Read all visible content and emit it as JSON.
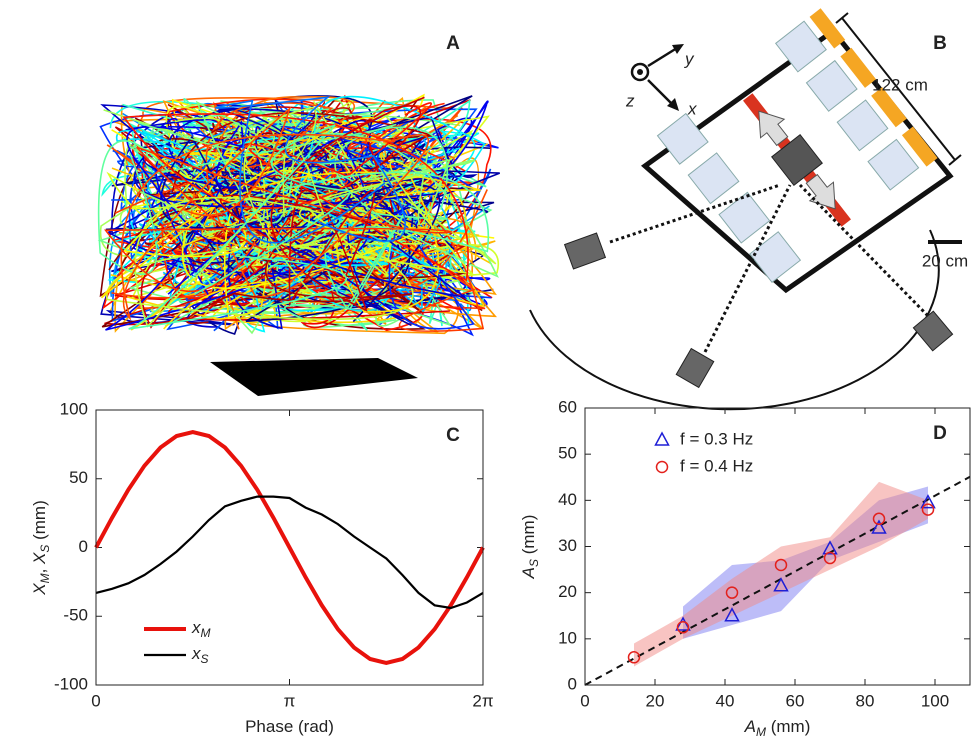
{
  "figure": {
    "panel_a": {
      "label": "A"
    },
    "panel_b": {
      "label": "B",
      "length": "122 cm",
      "scale_bar": "20 cm",
      "axis_x": "x",
      "axis_y": "y",
      "axis_z": "z"
    }
  },
  "chart_data": [
    {
      "type": "line",
      "label": "C",
      "xlabel": "Phase (rad)",
      "ylabel": "XM, XS (mm)",
      "x": [
        0,
        0.2618,
        0.5236,
        0.7854,
        1.0472,
        1.309,
        1.5708,
        1.8326,
        2.0944,
        2.3562,
        2.618,
        2.8798,
        3.1416,
        3.4034,
        3.6652,
        3.927,
        4.1888,
        4.4506,
        4.7124,
        4.9742,
        5.236,
        5.4978,
        5.7596,
        6.0214,
        6.2832
      ],
      "series": [
        {
          "name": "xM",
          "color": "#e8120c",
          "width": 4,
          "values": [
            0,
            21.7,
            42,
            59.4,
            72.7,
            81.1,
            84,
            81.1,
            72.7,
            59.4,
            42,
            21.7,
            0,
            -21.7,
            -42,
            -59.4,
            -72.7,
            -81.1,
            -84,
            -81.1,
            -72.7,
            -59.4,
            -42,
            -21.7,
            0
          ]
        },
        {
          "name": "xS",
          "color": "#000000",
          "width": 2.2,
          "values": [
            -33,
            -30,
            -26,
            -20,
            -12,
            -3,
            8,
            20,
            30,
            34,
            37,
            37,
            36,
            29,
            24,
            17,
            8,
            0,
            -8,
            -20,
            -33,
            -42,
            -44,
            -40,
            -33
          ]
        }
      ],
      "xlim": [
        0,
        6.2832
      ],
      "xticks": [
        0,
        {
          "value": 3.1416,
          "label": "π"
        },
        {
          "value": 6.2832,
          "label": "2π"
        }
      ],
      "ylim": [
        -100,
        100
      ],
      "yticks": [
        -100,
        -50,
        0,
        50,
        100
      ],
      "legend": "lower-left"
    },
    {
      "type": "scatter",
      "label": "D",
      "xlabel": "AM (mm)",
      "ylabel": "AS (mm)",
      "series": [
        {
          "name": "f = 0.3 Hz",
          "color": "#1f1fd6",
          "marker": "triangle",
          "band_color": "#7b7bf2",
          "x": [
            28,
            42,
            56,
            70,
            84,
            98
          ],
          "values": [
            13,
            15,
            21.5,
            29.5,
            34,
            39.5
          ],
          "band_low": [
            10,
            13,
            16,
            27,
            31,
            35
          ],
          "band_high": [
            17,
            26,
            27,
            31,
            40,
            43
          ]
        },
        {
          "name": "f = 0.4 Hz",
          "color": "#e3211c",
          "marker": "circle",
          "band_color": "#f28a86",
          "x": [
            14,
            28,
            42,
            56,
            70,
            84,
            98
          ],
          "values": [
            6,
            12.5,
            20,
            26,
            27.5,
            36,
            38
          ],
          "band_low": [
            4,
            10,
            15,
            20,
            25,
            30,
            36
          ],
          "band_high": [
            9,
            15,
            23,
            30,
            32,
            44,
            40
          ]
        }
      ],
      "fit_line": {
        "x": [
          0,
          110
        ],
        "y": [
          0,
          45.1
        ]
      },
      "xlim": [
        0,
        110
      ],
      "xticks": [
        0,
        20,
        40,
        60,
        80,
        100
      ],
      "ylim": [
        0,
        60
      ],
      "yticks": [
        0,
        10,
        20,
        30,
        40,
        50,
        60
      ],
      "legend": "upper-left"
    }
  ]
}
